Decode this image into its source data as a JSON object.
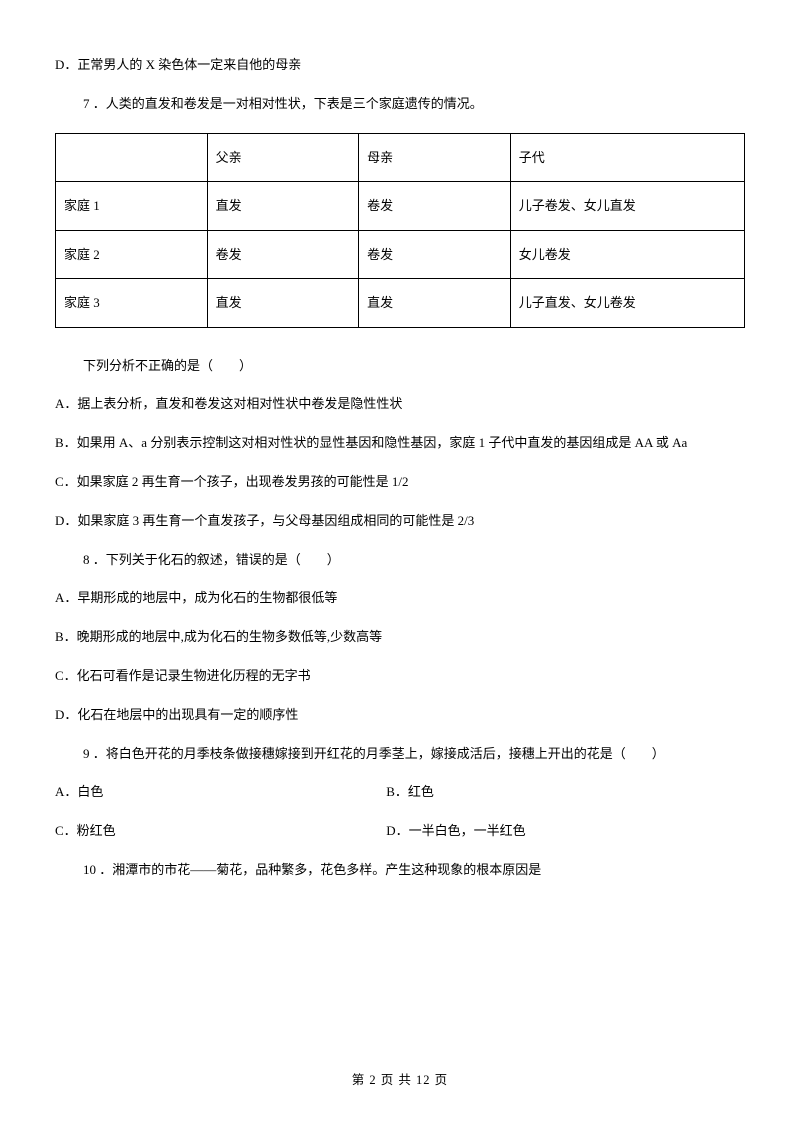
{
  "topLine": "D．正常男人的 X 染色体一定来自他的母亲",
  "q7": {
    "stem": "7 ．人类的直发和卷发是一对相对性状，下表是三个家庭遗传的情况。",
    "table": {
      "header": [
        "",
        "父亲",
        "母亲",
        "子代"
      ],
      "rows": [
        [
          "家庭 1",
          "直发",
          "卷发",
          "儿子卷发、女儿直发"
        ],
        [
          "家庭 2",
          "卷发",
          "卷发",
          "女儿卷发"
        ],
        [
          "家庭 3",
          "直发",
          "直发",
          "儿子直发、女儿卷发"
        ]
      ]
    },
    "prompt": "下列分析不正确的是（　　）",
    "optA": "A．据上表分析，直发和卷发这对相对性状中卷发是隐性性状",
    "optB": "B．如果用 A、a 分别表示控制这对相对性状的显性基因和隐性基因，家庭 1 子代中直发的基因组成是 AA 或 Aa",
    "optC": "C．如果家庭 2 再生育一个孩子，出现卷发男孩的可能性是 1/2",
    "optD": "D．如果家庭 3 再生育一个直发孩子，与父母基因组成相同的可能性是 2/3"
  },
  "q8": {
    "stem": "8 ．下列关于化石的叙述，错误的是（　　）",
    "optA": "A．早期形成的地层中，成为化石的生物都很低等",
    "optB": "B．晚期形成的地层中,成为化石的生物多数低等,少数高等",
    "optC": "C．化石可看作是记录生物进化历程的无字书",
    "optD": "D．化石在地层中的出现具有一定的顺序性"
  },
  "q9": {
    "stem": "9 ．将白色开花的月季枝条做接穗嫁接到开红花的月季茎上，嫁接成活后，接穗上开出的花是（　　）",
    "optA": "A．白色",
    "optB": "B．红色",
    "optC": "C．粉红色",
    "optD": "D．一半白色，一半红色"
  },
  "q10": {
    "stem": "10 ．湘潭市的市花——菊花，品种繁多，花色多样。产生这种现象的根本原因是"
  },
  "footer": "第 2 页 共 12 页"
}
